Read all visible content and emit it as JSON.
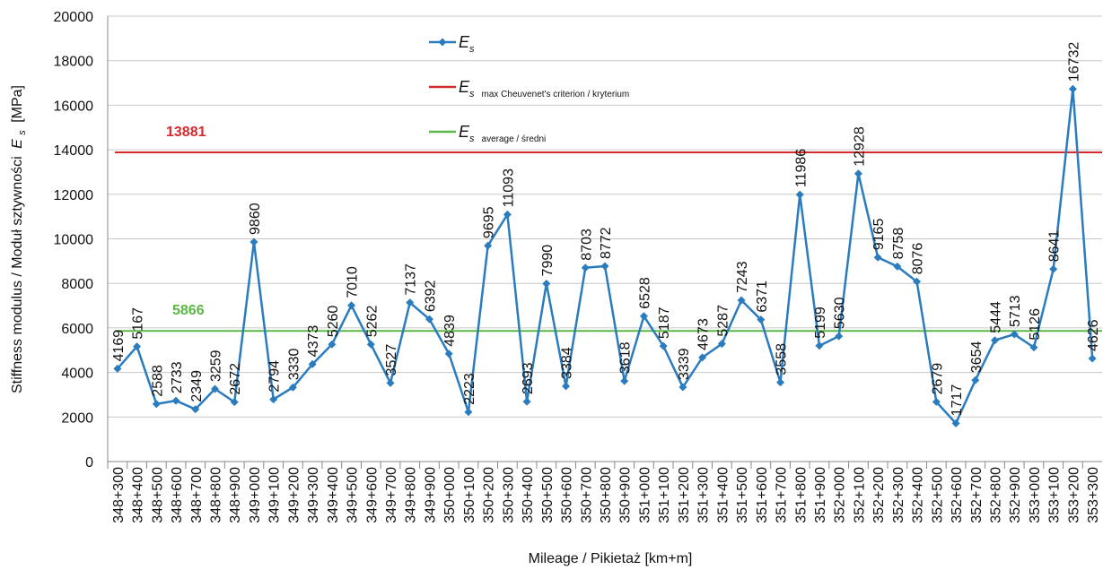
{
  "chart_data": {
    "type": "line",
    "xlabel": "Mileage / Pikietaż [km+m]",
    "ylabel": {
      "text": "Stiffness modulus / Moduł sztywności",
      "symbol": "E",
      "sub": "s",
      "unit": "[MPa]"
    },
    "categories": [
      "348+300",
      "348+400",
      "348+500",
      "348+600",
      "348+700",
      "348+800",
      "348+900",
      "349+000",
      "349+100",
      "349+200",
      "349+300",
      "349+400",
      "349+500",
      "349+600",
      "349+700",
      "349+800",
      "349+900",
      "350+000",
      "350+100",
      "350+200",
      "350+300",
      "350+400",
      "350+500",
      "350+600",
      "350+700",
      "350+800",
      "350+900",
      "351+000",
      "351+100",
      "351+200",
      "351+300",
      "351+400",
      "351+500",
      "351+600",
      "351+700",
      "351+800",
      "351+900",
      "352+000",
      "352+100",
      "352+200",
      "352+300",
      "352+400",
      "352+500",
      "352+600",
      "352+700",
      "352+800",
      "352+900",
      "353+000",
      "353+100",
      "353+200",
      "353+300"
    ],
    "series": [
      {
        "name": "E",
        "name_sub": "s",
        "color": "#2a7cbf",
        "values": [
          4169,
          5167,
          2588,
          2733,
          2349,
          3259,
          2672,
          9860,
          2794,
          3330,
          4373,
          5260,
          7010,
          5262,
          3527,
          7137,
          6392,
          4839,
          2223,
          9695,
          11093,
          2693,
          7990,
          3384,
          8703,
          8772,
          3618,
          6528,
          5187,
          3339,
          4673,
          5287,
          7243,
          6371,
          3558,
          11986,
          5199,
          5630,
          12928,
          9165,
          8758,
          8076,
          2679,
          1717,
          3654,
          5444,
          5713,
          5126,
          8641,
          16732,
          4626
        ]
      }
    ],
    "reference_lines": [
      {
        "label": "E",
        "label_sub": "s",
        "note": "max Cheuvenet's criterion / kryterium",
        "value": 13881,
        "color": "#d42a2e"
      },
      {
        "label": "E",
        "label_sub": "s",
        "note": "average / średni",
        "value": 5866,
        "color": "#5ab847"
      }
    ],
    "ylim": [
      0,
      20000
    ],
    "yticks": [
      0,
      2000,
      4000,
      6000,
      8000,
      10000,
      12000,
      14000,
      16000,
      18000,
      20000
    ],
    "grid": true
  }
}
